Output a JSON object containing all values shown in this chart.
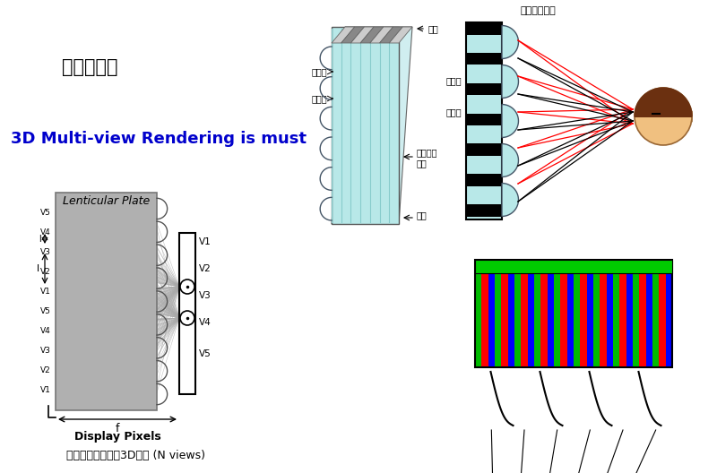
{
  "bg_color": "#ffffff",
  "title_zh": "透光亮度佳",
  "title_en": "3D Multi-view Rendering is must",
  "bottom_label1": "Display Pixels",
  "bottom_label2": "柱狀透鏡式多視角3D顯示 (N views)",
  "lenticular_label": "Lenticular Plate",
  "top_center_label": "柱狀透鏡螢幕",
  "label_thickness": "厚度",
  "label_right1": "右影像",
  "label_left1": "左影像",
  "label_biconvex": "雙凸透鏡",
  "label_biconvex2": "螢幕",
  "label_panel_bottom": "顯諧",
  "label_right2": "右影像",
  "label_left2": "左影像",
  "gray_color": "#b0b0b0",
  "cyan_color": "#b8e8e8",
  "head_skin": "#f0c080",
  "head_hair": "#6b3010"
}
